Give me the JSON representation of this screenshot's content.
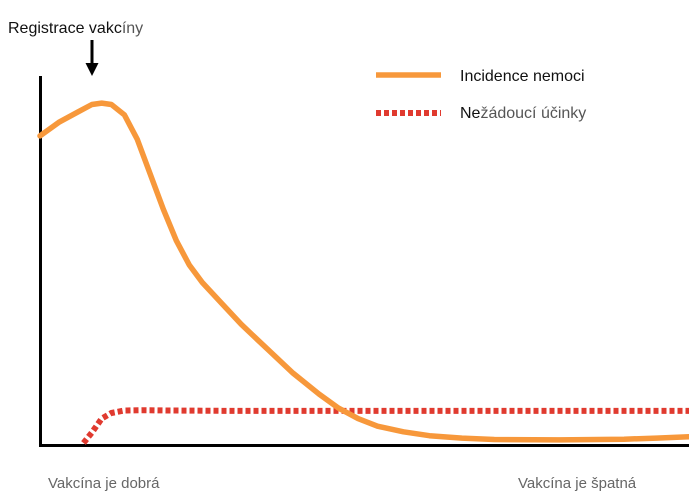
{
  "annotation": {
    "text_dark": "Registrace vakc",
    "text_light": "íny"
  },
  "legend": {
    "position": "top-right",
    "incidence_label": "Incidence nemoci",
    "adverse_label_dark": "Ne",
    "adverse_label_light": "žádoucí účinky"
  },
  "x_axis": {
    "left_label": "Vakcína je dobrá",
    "right_label": "Vakcína je špatná"
  },
  "colors": {
    "incidence": "#F7983B",
    "adverse": "#E03A2F",
    "axis": "#000000",
    "arrow": "#000000"
  },
  "chart_data": {
    "type": "line",
    "title": "",
    "xlabel": "",
    "ylabel": "",
    "xlim": [
      0,
      100
    ],
    "ylim": [
      0,
      100
    ],
    "grid": false,
    "legend_position": "top-right",
    "annotations": [
      "Registrace vakcíny"
    ],
    "series": [
      {
        "name": "Incidence nemoci",
        "style": "solid",
        "points": [
          [
            0,
            88
          ],
          [
            3,
            92
          ],
          [
            6,
            95
          ],
          [
            8,
            97
          ],
          [
            9.5,
            97.4
          ],
          [
            11,
            97
          ],
          [
            13,
            94
          ],
          [
            15,
            87
          ],
          [
            17,
            77
          ],
          [
            19,
            67
          ],
          [
            21,
            58
          ],
          [
            23,
            51
          ],
          [
            25,
            46
          ],
          [
            28,
            40
          ],
          [
            31,
            34
          ],
          [
            35,
            27
          ],
          [
            39,
            20
          ],
          [
            43,
            14
          ],
          [
            46,
            10
          ],
          [
            49,
            7
          ],
          [
            52,
            4.8
          ],
          [
            56,
            3.2
          ],
          [
            60,
            2.1
          ],
          [
            65,
            1.4
          ],
          [
            70,
            1
          ],
          [
            80,
            0.9
          ],
          [
            90,
            1.1
          ],
          [
            95,
            1.4
          ],
          [
            100,
            1.8
          ]
        ]
      },
      {
        "name": "Nežádoucí účinky",
        "style": "dotted",
        "points": [
          [
            6.7,
            0
          ],
          [
            8,
            3
          ],
          [
            9.5,
            7
          ],
          [
            11,
            8.6
          ],
          [
            13,
            9.3
          ],
          [
            16,
            9.4
          ],
          [
            20,
            9.3
          ],
          [
            30,
            9.2
          ],
          [
            40,
            9.2
          ],
          [
            50,
            9.2
          ],
          [
            60,
            9.2
          ],
          [
            70,
            9.2
          ],
          [
            80,
            9.2
          ],
          [
            90,
            9.2
          ],
          [
            100,
            9.2
          ]
        ]
      }
    ]
  }
}
